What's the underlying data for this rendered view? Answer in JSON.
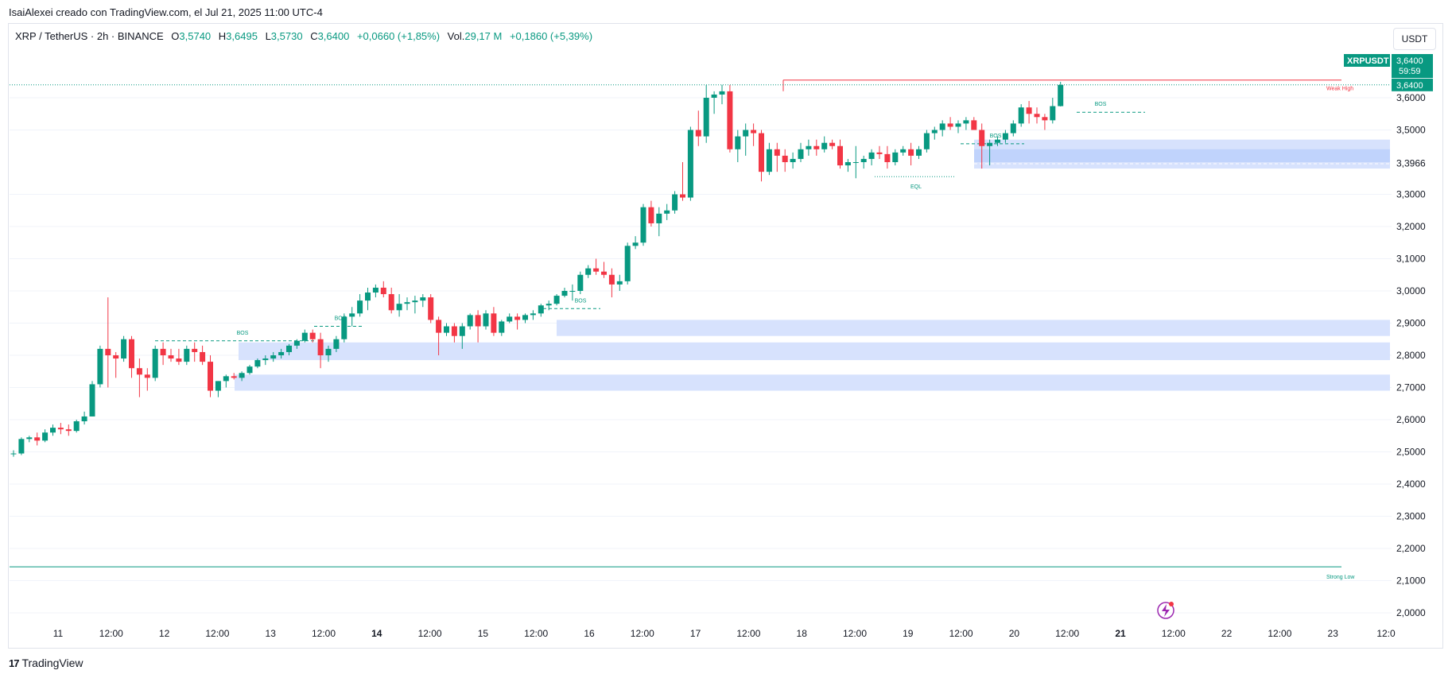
{
  "top_line": "IsaiAlexei creado con TradingView.com, el Jul 21, 2025 11:00 UTC-4",
  "header": {
    "symbol": "XRP / TetherUS · 2h · BINANCE",
    "o_label": "O",
    "o_value": "3,5740",
    "h_label": "H",
    "h_value": "3,6495",
    "l_label": "L",
    "l_value": "3,5730",
    "c_label": "C",
    "c_value": "3,6400",
    "change": "+0,0660 (+1,85%)",
    "vol_label": "Vol.",
    "vol_value": "29,17 M",
    "vol_change": "+0,1860 (+5,39%)"
  },
  "currency_button": "USDT",
  "brand": {
    "logo": "17",
    "name": "TradingView"
  },
  "chart_data": {
    "type": "candlestick",
    "symbol_tag": "XRPUSDT",
    "last_price": "3,6400",
    "countdown": "59:59",
    "ref_price": "3,3966",
    "ylim": [
      2.0,
      3.6
    ],
    "y_ticks": [
      "2,0000",
      "2,1000",
      "2,2000",
      "2,3000",
      "2,4000",
      "2,5000",
      "2,6000",
      "2,7000",
      "2,8000",
      "2,9000",
      "3,0000",
      "3,1000",
      "3,2000",
      "3,3000",
      "3,5000",
      "3,6000"
    ],
    "x_ticks": [
      "11",
      "12:00",
      "12",
      "12:00",
      "13",
      "12:00",
      "14",
      "12:00",
      "15",
      "12:00",
      "16",
      "12:00",
      "17",
      "12:00",
      "18",
      "12:00",
      "19",
      "12:00",
      "20",
      "12:00",
      "21",
      "12:00",
      "22",
      "12:00",
      "23",
      "12:0"
    ],
    "x_ticks_bold": [
      "14",
      "21"
    ],
    "annotations": {
      "bos": [
        "BOS",
        "BOS",
        "BOS",
        "BOS",
        "BOS"
      ],
      "eql": "EQL",
      "weak_high": "Weak High",
      "strong_low": "Strong Low"
    },
    "levels": {
      "weak_high": 3.655,
      "strong_low": 2.143
    },
    "zones": [
      [
        2.69,
        2.74
      ],
      [
        2.785,
        2.84
      ],
      [
        2.86,
        2.91
      ],
      [
        3.38,
        3.47
      ],
      [
        3.4,
        3.44
      ]
    ],
    "colors": {
      "up": "#089981",
      "down": "#f23645",
      "zone": "#d7e2fd",
      "zone_dark": "#bcd0fb",
      "grid": "#f0f3fa",
      "text": "#131722",
      "axis_text": "#131722"
    },
    "candles": [
      [
        2.495,
        2.505,
        2.485,
        2.495
      ],
      [
        2.495,
        2.545,
        2.49,
        2.54
      ],
      [
        2.54,
        2.55,
        2.53,
        2.545
      ],
      [
        2.545,
        2.56,
        2.52,
        2.535
      ],
      [
        2.535,
        2.57,
        2.53,
        2.56
      ],
      [
        2.56,
        2.585,
        2.55,
        2.575
      ],
      [
        2.575,
        2.59,
        2.555,
        2.57
      ],
      [
        2.57,
        2.585,
        2.55,
        2.565
      ],
      [
        2.565,
        2.6,
        2.56,
        2.595
      ],
      [
        2.595,
        2.625,
        2.585,
        2.61
      ],
      [
        2.61,
        2.72,
        2.61,
        2.71
      ],
      [
        2.71,
        2.83,
        2.7,
        2.82
      ],
      [
        2.82,
        2.98,
        2.7,
        2.8
      ],
      [
        2.8,
        2.81,
        2.73,
        2.79
      ],
      [
        2.79,
        2.86,
        2.78,
        2.85
      ],
      [
        2.85,
        2.86,
        2.73,
        2.76
      ],
      [
        2.76,
        2.79,
        2.67,
        2.74
      ],
      [
        2.74,
        2.76,
        2.69,
        2.73
      ],
      [
        2.73,
        2.83,
        2.72,
        2.82
      ],
      [
        2.82,
        2.84,
        2.77,
        2.8
      ],
      [
        2.8,
        2.82,
        2.78,
        2.79
      ],
      [
        2.79,
        2.82,
        2.77,
        2.78
      ],
      [
        2.78,
        2.83,
        2.77,
        2.82
      ],
      [
        2.82,
        2.84,
        2.78,
        2.81
      ],
      [
        2.81,
        2.83,
        2.77,
        2.78
      ],
      [
        2.78,
        2.8,
        2.67,
        2.69
      ],
      [
        2.69,
        2.72,
        2.67,
        2.72
      ],
      [
        2.72,
        2.74,
        2.7,
        2.735
      ],
      [
        2.735,
        2.745,
        2.725,
        2.73
      ],
      [
        2.73,
        2.75,
        2.72,
        2.745
      ],
      [
        2.745,
        2.77,
        2.74,
        2.765
      ],
      [
        2.765,
        2.79,
        2.76,
        2.785
      ],
      [
        2.785,
        2.8,
        2.77,
        2.79
      ],
      [
        2.79,
        2.81,
        2.78,
        2.8
      ],
      [
        2.8,
        2.82,
        2.79,
        2.81
      ],
      [
        2.81,
        2.835,
        2.8,
        2.83
      ],
      [
        2.83,
        2.85,
        2.82,
        2.845
      ],
      [
        2.845,
        2.88,
        2.84,
        2.87
      ],
      [
        2.87,
        2.88,
        2.84,
        2.85
      ],
      [
        2.85,
        2.87,
        2.76,
        2.8
      ],
      [
        2.8,
        2.83,
        2.78,
        2.82
      ],
      [
        2.82,
        2.86,
        2.81,
        2.85
      ],
      [
        2.85,
        2.93,
        2.84,
        2.92
      ],
      [
        2.92,
        2.95,
        2.89,
        2.93
      ],
      [
        2.93,
        2.99,
        2.92,
        2.97
      ],
      [
        2.97,
        3.01,
        2.94,
        2.995
      ],
      [
        2.995,
        3.02,
        2.98,
        3.01
      ],
      [
        3.01,
        3.03,
        2.98,
        2.99
      ],
      [
        2.99,
        3.01,
        2.93,
        2.94
      ],
      [
        2.94,
        2.99,
        2.92,
        2.96
      ],
      [
        2.96,
        2.98,
        2.94,
        2.965
      ],
      [
        2.965,
        2.985,
        2.93,
        2.97
      ],
      [
        2.97,
        2.99,
        2.95,
        2.98
      ],
      [
        2.98,
        2.99,
        2.9,
        2.91
      ],
      [
        2.91,
        2.92,
        2.8,
        2.87
      ],
      [
        2.87,
        2.9,
        2.86,
        2.89
      ],
      [
        2.89,
        2.9,
        2.84,
        2.86
      ],
      [
        2.86,
        2.9,
        2.82,
        2.89
      ],
      [
        2.89,
        2.93,
        2.88,
        2.925
      ],
      [
        2.925,
        2.94,
        2.84,
        2.89
      ],
      [
        2.89,
        2.94,
        2.88,
        2.93
      ],
      [
        2.93,
        2.95,
        2.86,
        2.87
      ],
      [
        2.87,
        2.91,
        2.86,
        2.905
      ],
      [
        2.905,
        2.93,
        2.9,
        2.92
      ],
      [
        2.92,
        2.93,
        2.88,
        2.91
      ],
      [
        2.91,
        2.93,
        2.9,
        2.925
      ],
      [
        2.925,
        2.94,
        2.91,
        2.93
      ],
      [
        2.93,
        2.96,
        2.92,
        2.955
      ],
      [
        2.955,
        2.97,
        2.94,
        2.96
      ],
      [
        2.96,
        2.99,
        2.955,
        2.985
      ],
      [
        2.985,
        3.01,
        2.98,
        3.0
      ],
      [
        3.0,
        3.02,
        2.97,
        3.0
      ],
      [
        3.0,
        3.06,
        2.99,
        3.05
      ],
      [
        3.05,
        3.08,
        3.04,
        3.07
      ],
      [
        3.07,
        3.1,
        3.05,
        3.06
      ],
      [
        3.06,
        3.09,
        3.04,
        3.05
      ],
      [
        3.05,
        3.07,
        2.98,
        3.02
      ],
      [
        3.02,
        3.05,
        3.0,
        3.03
      ],
      [
        3.03,
        3.15,
        3.02,
        3.14
      ],
      [
        3.14,
        3.17,
        3.13,
        3.15
      ],
      [
        3.15,
        3.27,
        3.14,
        3.26
      ],
      [
        3.26,
        3.28,
        3.2,
        3.21
      ],
      [
        3.21,
        3.26,
        3.17,
        3.24
      ],
      [
        3.24,
        3.27,
        3.22,
        3.25
      ],
      [
        3.25,
        3.31,
        3.24,
        3.3
      ],
      [
        3.3,
        3.4,
        3.28,
        3.29
      ],
      [
        3.29,
        3.51,
        3.28,
        3.5
      ],
      [
        3.5,
        3.56,
        3.45,
        3.48
      ],
      [
        3.48,
        3.64,
        3.46,
        3.6
      ],
      [
        3.6,
        3.62,
        3.55,
        3.61
      ],
      [
        3.61,
        3.64,
        3.58,
        3.62
      ],
      [
        3.62,
        3.64,
        3.43,
        3.44
      ],
      [
        3.44,
        3.5,
        3.4,
        3.48
      ],
      [
        3.48,
        3.52,
        3.42,
        3.5
      ],
      [
        3.5,
        3.52,
        3.45,
        3.49
      ],
      [
        3.49,
        3.5,
        3.34,
        3.37
      ],
      [
        3.37,
        3.46,
        3.36,
        3.44
      ],
      [
        3.44,
        3.46,
        3.37,
        3.42
      ],
      [
        3.42,
        3.44,
        3.37,
        3.4
      ],
      [
        3.4,
        3.43,
        3.38,
        3.41
      ],
      [
        3.41,
        3.46,
        3.4,
        3.44
      ],
      [
        3.44,
        3.47,
        3.42,
        3.45
      ],
      [
        3.45,
        3.47,
        3.42,
        3.44
      ],
      [
        3.44,
        3.48,
        3.43,
        3.46
      ],
      [
        3.46,
        3.47,
        3.44,
        3.45
      ],
      [
        3.45,
        3.47,
        3.38,
        3.39
      ],
      [
        3.39,
        3.41,
        3.37,
        3.4
      ],
      [
        3.4,
        3.45,
        3.35,
        3.4
      ],
      [
        3.4,
        3.42,
        3.38,
        3.41
      ],
      [
        3.41,
        3.44,
        3.39,
        3.43
      ],
      [
        3.43,
        3.45,
        3.41,
        3.425
      ],
      [
        3.425,
        3.45,
        3.38,
        3.4
      ],
      [
        3.4,
        3.44,
        3.39,
        3.43
      ],
      [
        3.43,
        3.45,
        3.42,
        3.44
      ],
      [
        3.44,
        3.46,
        3.39,
        3.42
      ],
      [
        3.42,
        3.45,
        3.41,
        3.44
      ],
      [
        3.44,
        3.5,
        3.43,
        3.49
      ],
      [
        3.49,
        3.51,
        3.47,
        3.5
      ],
      [
        3.5,
        3.53,
        3.48,
        3.52
      ],
      [
        3.52,
        3.54,
        3.5,
        3.51
      ],
      [
        3.51,
        3.53,
        3.49,
        3.52
      ],
      [
        3.52,
        3.54,
        3.5,
        3.53
      ],
      [
        3.53,
        3.54,
        3.51,
        3.5
      ],
      [
        3.5,
        3.52,
        3.38,
        3.45
      ],
      [
        3.45,
        3.47,
        3.39,
        3.46
      ],
      [
        3.46,
        3.48,
        3.45,
        3.47
      ],
      [
        3.47,
        3.5,
        3.46,
        3.49
      ],
      [
        3.49,
        3.53,
        3.48,
        3.52
      ],
      [
        3.52,
        3.58,
        3.51,
        3.57
      ],
      [
        3.57,
        3.59,
        3.52,
        3.55
      ],
      [
        3.55,
        3.57,
        3.52,
        3.54
      ],
      [
        3.54,
        3.55,
        3.5,
        3.53
      ],
      [
        3.53,
        3.6,
        3.52,
        3.574
      ],
      [
        3.574,
        3.6495,
        3.573,
        3.64
      ]
    ]
  }
}
